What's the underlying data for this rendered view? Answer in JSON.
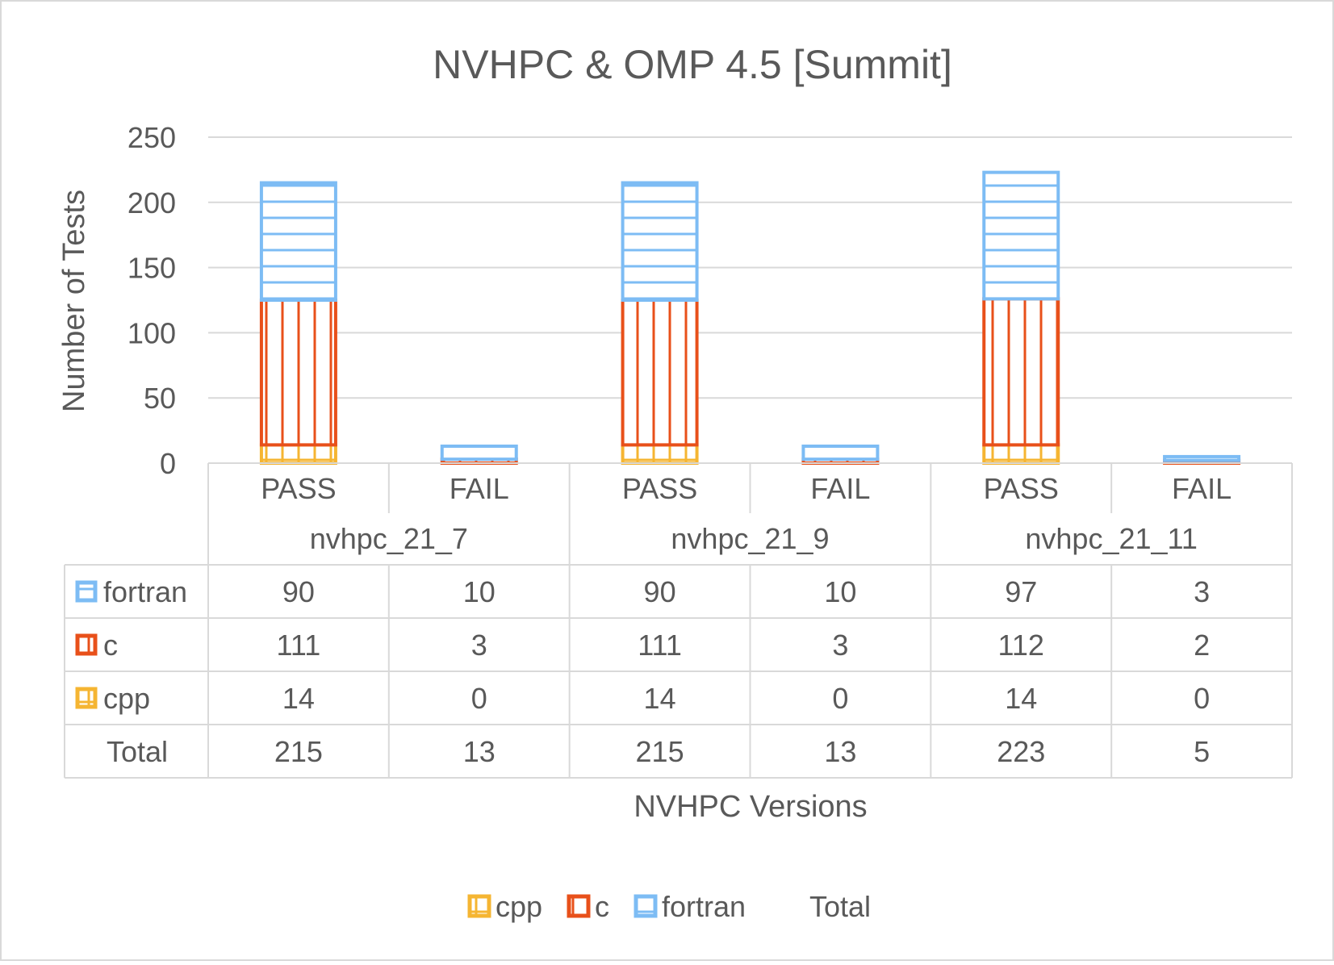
{
  "chart_data": {
    "type": "bar",
    "stacked": true,
    "title": "NVHPC & OMP 4.5 [Summit]",
    "xlabel": "NVHPC Versions",
    "ylabel": "Number of Tests",
    "ylim": [
      0,
      250
    ],
    "yticks": [
      "0",
      "50",
      "100",
      "150",
      "200",
      "250"
    ],
    "groups": [
      "nvhpc_21_7",
      "nvhpc_21_9",
      "nvhpc_21_11"
    ],
    "categories": [
      "PASS",
      "FAIL",
      "PASS",
      "FAIL",
      "PASS",
      "FAIL"
    ],
    "series": [
      {
        "name": "cpp",
        "color": "#F5B532",
        "pattern": "grid",
        "values": [
          14,
          0,
          14,
          0,
          14,
          0
        ]
      },
      {
        "name": "c",
        "color": "#E8501A",
        "pattern": "vertical-lines",
        "values": [
          111,
          3,
          111,
          3,
          112,
          2
        ]
      },
      {
        "name": "fortran",
        "color": "#7DBCF4",
        "pattern": "horizontal-lines",
        "values": [
          90,
          10,
          90,
          10,
          97,
          3
        ]
      }
    ],
    "table": {
      "row_order": [
        "fortran",
        "c",
        "cpp"
      ],
      "total_label": "Total",
      "total_values": [
        215,
        13,
        215,
        13,
        223,
        5
      ]
    },
    "legend": {
      "position": "bottom",
      "entries": [
        "cpp",
        "c",
        "fortran",
        "Total"
      ]
    },
    "grid": true
  }
}
